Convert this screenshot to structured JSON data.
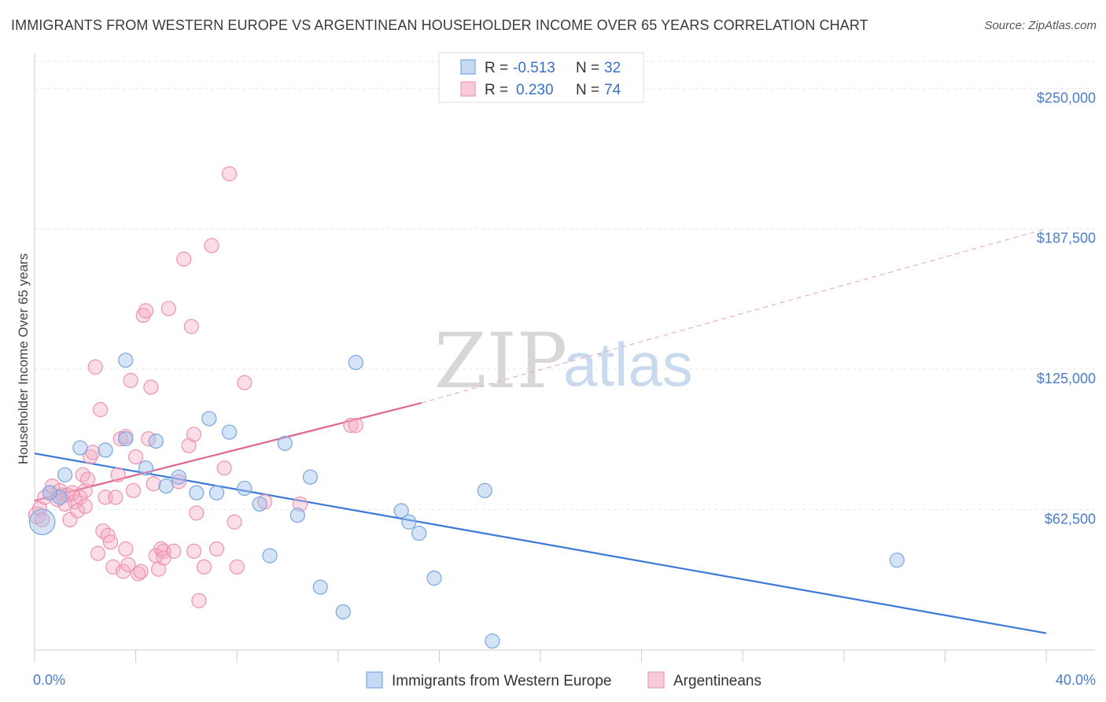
{
  "title": "IMMIGRANTS FROM WESTERN EUROPE VS ARGENTINEAN HOUSEHOLDER INCOME OVER 65 YEARS CORRELATION CHART",
  "source": "Source: ZipAtlas.com",
  "watermark": {
    "zip": "ZIP",
    "atlas": "atlas"
  },
  "legend": {
    "rows": [
      {
        "r_label": "R =",
        "r_value": "-0.513",
        "n_label": "N =",
        "n_value": "32",
        "color": "#7aa6e0"
      },
      {
        "r_label": "R =",
        "r_value": "0.230",
        "n_label": "N =",
        "n_value": "74",
        "color": "#f09ab8"
      }
    ]
  },
  "chart_data": {
    "type": "scatter",
    "title": "IMMIGRANTS FROM WESTERN EUROPE VS ARGENTINEAN HOUSEHOLDER INCOME OVER 65 YEARS CORRELATION CHART",
    "xlabel": "",
    "ylabel": "Householder Income Over 65 years",
    "xlim": [
      0,
      40
    ],
    "ylim": [
      0,
      262000
    ],
    "x_tick_labels": [
      "0.0%",
      "40.0%"
    ],
    "y_ticks": [
      62500,
      125000,
      187500,
      250000
    ],
    "y_tick_labels": [
      "$62,500",
      "$125,000",
      "$187,500",
      "$250,000"
    ],
    "grid": true,
    "legend_position": "top-center",
    "series": [
      {
        "name": "Immigrants from Western Europe",
        "color": "#7aa6e0",
        "trend": {
          "x": [
            0,
            40
          ],
          "y": [
            87500,
            7500
          ],
          "dashed_extension": false
        },
        "points": [
          [
            0.3,
            57000,
            1.8
          ],
          [
            1.0,
            68000,
            1
          ],
          [
            1.2,
            78000,
            1
          ],
          [
            1.8,
            90000,
            1
          ],
          [
            2.8,
            89000,
            1
          ],
          [
            3.6,
            94000,
            1
          ],
          [
            3.6,
            129000,
            1
          ],
          [
            4.4,
            81000,
            1
          ],
          [
            4.8,
            93000,
            1
          ],
          [
            5.2,
            73000,
            1
          ],
          [
            5.7,
            77000,
            1
          ],
          [
            6.4,
            70000,
            1
          ],
          [
            6.9,
            103000,
            1
          ],
          [
            7.2,
            70000,
            1
          ],
          [
            7.7,
            97000,
            1
          ],
          [
            8.3,
            72000,
            1
          ],
          [
            8.9,
            65000,
            1
          ],
          [
            9.3,
            42000,
            1
          ],
          [
            9.9,
            92000,
            1
          ],
          [
            10.4,
            60000,
            1
          ],
          [
            10.9,
            77000,
            1
          ],
          [
            11.3,
            28000,
            1
          ],
          [
            12.2,
            17000,
            1
          ],
          [
            12.7,
            128000,
            1
          ],
          [
            14.5,
            62000,
            1
          ],
          [
            14.8,
            57000,
            1
          ],
          [
            15.2,
            52000,
            1
          ],
          [
            15.8,
            32000,
            1
          ],
          [
            17.8,
            71000,
            1
          ],
          [
            18.1,
            4000,
            1
          ],
          [
            34.1,
            40000,
            1
          ],
          [
            0.6,
            70000,
            1
          ]
        ]
      },
      {
        "name": "Argentineans",
        "color": "#f09ab8",
        "trend": {
          "x": [
            0,
            15.3
          ],
          "y": [
            66500,
            110000
          ],
          "dashed_x": [
            15.3,
            40
          ],
          "dashed_y": [
            110000,
            187500
          ]
        },
        "points": [
          [
            0.1,
            60000,
            1.2
          ],
          [
            0.2,
            63000,
            1
          ],
          [
            0.4,
            68000,
            1
          ],
          [
            0.6,
            70000,
            1
          ],
          [
            0.7,
            73000,
            1
          ],
          [
            0.9,
            67000,
            1
          ],
          [
            1.0,
            71000,
            1
          ],
          [
            1.1,
            69000,
            1
          ],
          [
            1.3,
            69000,
            1
          ],
          [
            1.4,
            58000,
            1
          ],
          [
            1.5,
            70000,
            1
          ],
          [
            1.6,
            66000,
            1
          ],
          [
            1.7,
            62000,
            1
          ],
          [
            1.8,
            68000,
            1
          ],
          [
            1.9,
            78000,
            1
          ],
          [
            2.0,
            71000,
            1
          ],
          [
            2.1,
            76000,
            1
          ],
          [
            2.2,
            86000,
            1
          ],
          [
            2.3,
            88000,
            1
          ],
          [
            2.4,
            126000,
            1
          ],
          [
            2.5,
            43000,
            1
          ],
          [
            2.6,
            107000,
            1
          ],
          [
            2.7,
            53000,
            1
          ],
          [
            2.8,
            68000,
            1
          ],
          [
            2.9,
            51000,
            1
          ],
          [
            3.0,
            48000,
            1
          ],
          [
            3.1,
            37000,
            1
          ],
          [
            3.2,
            68000,
            1
          ],
          [
            3.3,
            78000,
            1
          ],
          [
            3.4,
            94000,
            1
          ],
          [
            3.5,
            35000,
            1
          ],
          [
            3.6,
            45000,
            1
          ],
          [
            3.7,
            38000,
            1
          ],
          [
            3.8,
            120000,
            1
          ],
          [
            3.9,
            71000,
            1
          ],
          [
            4.0,
            86000,
            1
          ],
          [
            4.1,
            34000,
            1
          ],
          [
            4.2,
            35000,
            1
          ],
          [
            4.3,
            149000,
            1
          ],
          [
            4.4,
            151000,
            1
          ],
          [
            4.5,
            94000,
            1
          ],
          [
            4.6,
            117000,
            1
          ],
          [
            4.7,
            74000,
            1
          ],
          [
            4.8,
            42000,
            1
          ],
          [
            4.9,
            36000,
            1
          ],
          [
            5.0,
            45000,
            1
          ],
          [
            5.1,
            44000,
            1
          ],
          [
            5.3,
            152000,
            1
          ],
          [
            5.5,
            44000,
            1
          ],
          [
            5.7,
            75000,
            1
          ],
          [
            5.9,
            174000,
            1
          ],
          [
            6.1,
            91000,
            1
          ],
          [
            6.2,
            144000,
            1
          ],
          [
            6.3,
            96000,
            1
          ],
          [
            6.4,
            61000,
            1
          ],
          [
            6.5,
            22000,
            1
          ],
          [
            6.7,
            37000,
            1
          ],
          [
            7.0,
            180000,
            1
          ],
          [
            7.2,
            45000,
            1
          ],
          [
            7.5,
            81000,
            1
          ],
          [
            7.7,
            212000,
            1
          ],
          [
            7.9,
            57000,
            1
          ],
          [
            8.0,
            37000,
            1
          ],
          [
            8.3,
            119000,
            1
          ],
          [
            9.1,
            66000,
            1
          ],
          [
            10.5,
            65000,
            1
          ],
          [
            12.5,
            100000,
            1
          ],
          [
            12.7,
            100000,
            1
          ],
          [
            0.3,
            58000,
            1
          ],
          [
            1.2,
            65000,
            1
          ],
          [
            2.0,
            64000,
            1
          ],
          [
            3.6,
            95000,
            1
          ],
          [
            5.1,
            41000,
            1
          ],
          [
            6.3,
            44000,
            1
          ]
        ]
      }
    ]
  }
}
